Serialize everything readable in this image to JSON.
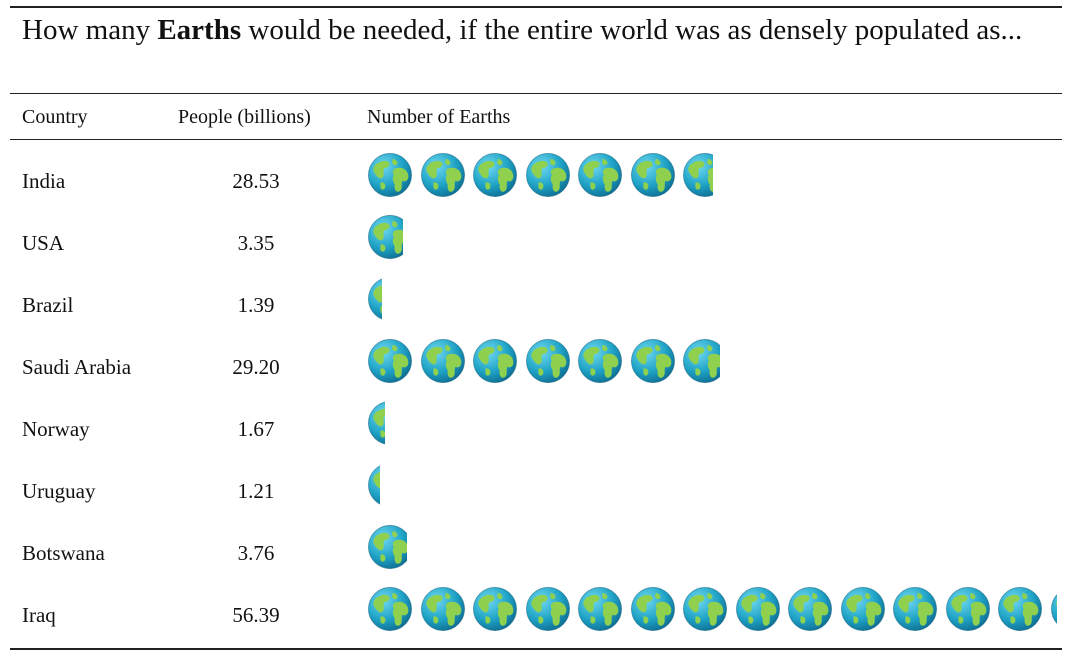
{
  "caption": {
    "prefix": "How many ",
    "emphasis": "Earths",
    "suffix": " would be needed, if the entire world was as densely populated as..."
  },
  "table": {
    "headers": {
      "country": "Country",
      "people": "People (billions)",
      "earths": "Number of Earths"
    },
    "rows": [
      {
        "country": "India",
        "people": "28.53",
        "earths": 6.67
      },
      {
        "country": "USA",
        "people": "3.35",
        "earths": 0.78
      },
      {
        "country": "Brazil",
        "people": "1.39",
        "earths": 0.32
      },
      {
        "country": "Saudi Arabia",
        "people": "29.20",
        "earths": 6.82
      },
      {
        "country": "Norway",
        "people": "1.67",
        "earths": 0.39
      },
      {
        "country": "Uruguay",
        "people": "1.21",
        "earths": 0.28
      },
      {
        "country": "Botswana",
        "people": "3.76",
        "earths": 0.88
      },
      {
        "country": "Iraq",
        "people": "56.39",
        "earths": 13.17
      }
    ]
  },
  "icons": {
    "unit": "earth-globe-icon"
  },
  "colors": {
    "ocean": "#1fa3c6",
    "land": "#8fd14f",
    "rule": "#222222"
  }
}
